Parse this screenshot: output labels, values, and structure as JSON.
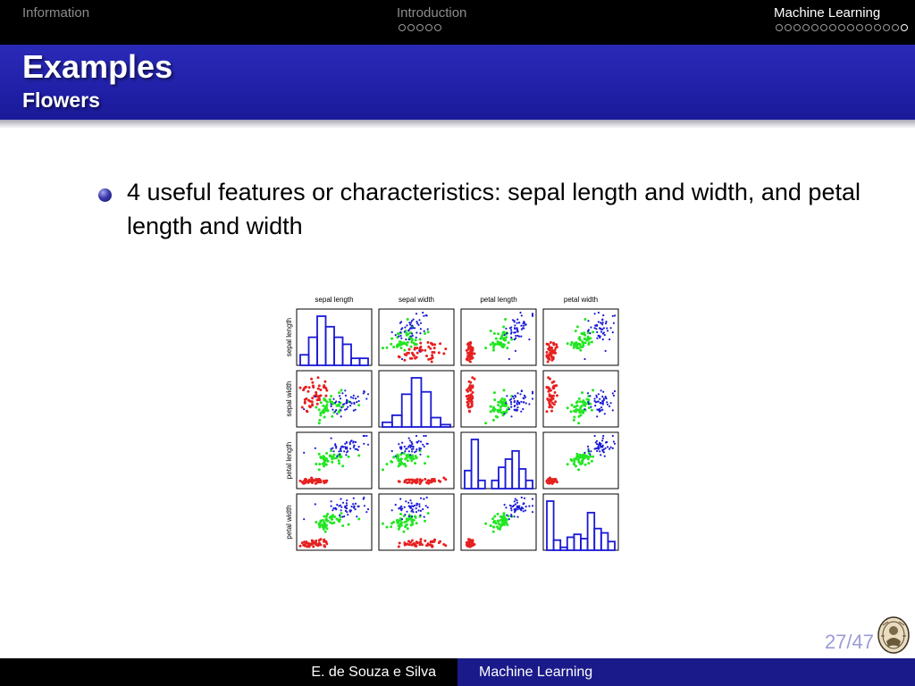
{
  "nav": {
    "sections": [
      {
        "label": "Information",
        "dots": 0,
        "active": false
      },
      {
        "label": "Introduction",
        "dots": 5,
        "active": false
      },
      {
        "label": "Machine Learning",
        "dots": 15,
        "active": true
      }
    ]
  },
  "frame": {
    "title": "Examples",
    "subtitle": "Flowers"
  },
  "bullets": [
    "4 useful features or characteristics: sepal length and width, and petal length and width"
  ],
  "chart_data": {
    "type": "scatter",
    "title": "",
    "variables": [
      "sepal length",
      "sepal width",
      "petal length",
      "petal width"
    ],
    "series_colors": [
      "#e62020",
      "#22e622",
      "#1a1ad6"
    ],
    "histogram_color": "#1a1ad6",
    "diagonal": "histogram",
    "grid": false,
    "histograms": [
      [
        3,
        8,
        14,
        11,
        8,
        6,
        2,
        2
      ],
      [
        2,
        5,
        14,
        21,
        15,
        4,
        1
      ],
      [
        11,
        30,
        5,
        0,
        5,
        13,
        18,
        23,
        12,
        5
      ],
      [
        34,
        7,
        2,
        9,
        11,
        8,
        26,
        15,
        12,
        6
      ]
    ],
    "clusters": [
      {
        "means": [
          5.0,
          3.42,
          1.46,
          0.24
        ],
        "sds": [
          0.35,
          0.38,
          0.17,
          0.11
        ]
      },
      {
        "means": [
          5.94,
          2.77,
          4.26,
          1.33
        ],
        "sds": [
          0.52,
          0.31,
          0.47,
          0.2
        ]
      },
      {
        "means": [
          6.59,
          2.97,
          5.55,
          2.03
        ],
        "sds": [
          0.64,
          0.32,
          0.55,
          0.27
        ]
      }
    ],
    "ranges": [
      [
        4.3,
        7.9
      ],
      [
        2.0,
        4.4
      ],
      [
        1.0,
        6.9
      ],
      [
        0.1,
        2.5
      ]
    ],
    "points_per_cluster": 50
  },
  "footer": {
    "author": "E. de Souza e Silva",
    "title": "Machine Learning"
  },
  "page": {
    "number": "27/47"
  },
  "colors": {
    "title_band": "#2020a8",
    "footer_accent": "#1a1a8a",
    "page_number": "#9b9bd6"
  },
  "logo": {
    "icon": "university-seal-icon"
  }
}
